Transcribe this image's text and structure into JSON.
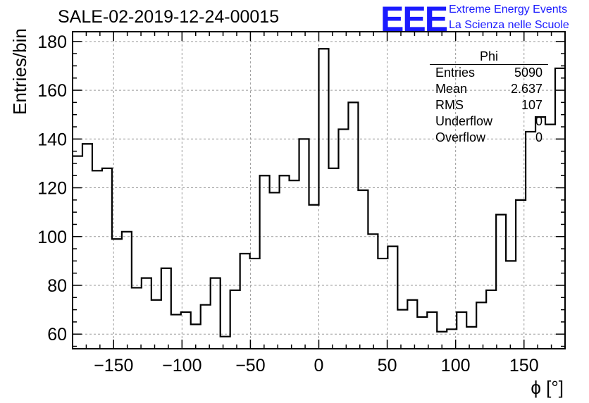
{
  "title": "SALE-02-2019-12-24-00015",
  "logo": {
    "mark": "EEE",
    "line1": "Extreme Energy Events",
    "line2": "La Scienza nelle Scuole",
    "color": "#1a1aff"
  },
  "stats": {
    "title": "Phi",
    "rows": [
      {
        "name": "Entries",
        "value": "5090"
      },
      {
        "name": "Mean",
        "value": "2.637"
      },
      {
        "name": "RMS",
        "value": "107"
      },
      {
        "name": "Underflow",
        "value": "0"
      },
      {
        "name": "Overflow",
        "value": "0"
      }
    ]
  },
  "chart_data": {
    "type": "histogram",
    "title": "SALE-02-2019-12-24-00015",
    "xlabel": "ϕ [°]",
    "ylabel": "Entries/bin",
    "xlim": [
      -180,
      180
    ],
    "ylim": [
      54,
      184
    ],
    "bin_width": 7.2,
    "x_ticks": [
      -150,
      -100,
      -50,
      0,
      50,
      100,
      150
    ],
    "x_tick_labels": [
      "−150",
      "−100",
      "−50",
      "0",
      "50",
      "100",
      "150"
    ],
    "y_ticks": [
      60,
      80,
      100,
      120,
      140,
      160,
      180
    ],
    "grid": true,
    "values": [
      133,
      138,
      127,
      128,
      99,
      102,
      79,
      83,
      74,
      87,
      68,
      69,
      64,
      72,
      83,
      59,
      78,
      93,
      91,
      125,
      118,
      125,
      123,
      140,
      113,
      177,
      128,
      144,
      155,
      119,
      101,
      91,
      96,
      70,
      74,
      67,
      69,
      61,
      62,
      69,
      63,
      73,
      78,
      109,
      90,
      115,
      143,
      149,
      146,
      169
    ]
  }
}
